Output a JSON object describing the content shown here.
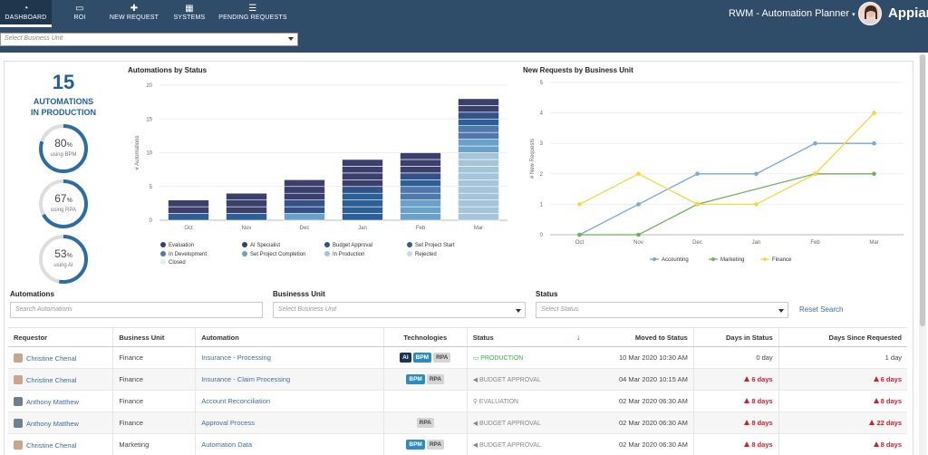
{
  "nav": {
    "tabs": [
      {
        "label": "DASHBOARD",
        "icon": "dashboard-icon",
        "active": true
      },
      {
        "label": "ROI",
        "icon": "roi-icon",
        "active": false
      },
      {
        "label": "NEW REQUEST",
        "icon": "plus-icon",
        "active": false
      },
      {
        "label": "SYSTEMS",
        "icon": "grid-icon",
        "active": false
      },
      {
        "label": "PENDING REQUESTS",
        "icon": "list-icon",
        "active": false
      }
    ],
    "app_title": "RWM - Automation Planner",
    "brand": "Appian"
  },
  "business_unit_select": {
    "placeholder": "Select Business Unit"
  },
  "kpi": {
    "count": "15",
    "label_line1": "AUTOMATIONS",
    "label_line2": "IN PRODUCTION",
    "gauges": [
      {
        "value": 80,
        "unit": "%",
        "label": "using BPM"
      },
      {
        "value": 67,
        "unit": "%",
        "label": "using RPA"
      },
      {
        "value": 53,
        "unit": "%",
        "label": "using AI"
      }
    ]
  },
  "colors": {
    "evaluation": "#3b3f6b",
    "ai_specialist": "#2b4466",
    "budget_approval": "#34528a",
    "set_project_start": "#2c5f95",
    "in_development": "#4f79aa",
    "set_project_completion": "#6aa1c9",
    "in_production": "#a4c4d9",
    "rejected": "#c8dbe8",
    "closed": "#e4edf4",
    "accounting": "#74a9d8",
    "marketing": "#6fb25a",
    "finance": "#f5d83e"
  },
  "chart_data": [
    {
      "type": "bar",
      "stacked": true,
      "title": "Automations by Status",
      "ylabel": "# Automations",
      "xlabel": "",
      "ylim": [
        0,
        20
      ],
      "yticks": [
        0,
        5,
        10,
        15,
        20
      ],
      "categories": [
        "Oct",
        "Nov",
        "Dec",
        "Jan",
        "Feb",
        "Mar"
      ],
      "series": [
        {
          "name": "In Production",
          "color_key": "in_production",
          "values": [
            0,
            0,
            0,
            0,
            0,
            10
          ]
        },
        {
          "name": "Set Project Completion",
          "color_key": "set_project_completion",
          "values": [
            0,
            0,
            1,
            0,
            3,
            2
          ]
        },
        {
          "name": "In Development",
          "color_key": "in_development",
          "values": [
            0,
            0,
            0,
            0,
            2,
            2
          ]
        },
        {
          "name": "Set Project Start",
          "color_key": "set_project_start",
          "values": [
            1,
            1,
            0,
            4,
            1,
            1
          ]
        },
        {
          "name": "Budget Approval",
          "color_key": "budget_approval",
          "values": [
            0,
            0,
            2,
            1,
            1,
            1
          ]
        },
        {
          "name": "AI Specialist",
          "color_key": "ai_specialist",
          "values": [
            0,
            0,
            0,
            0,
            0,
            0
          ]
        },
        {
          "name": "Evaluation",
          "color_key": "evaluation",
          "values": [
            2,
            3,
            3,
            4,
            3,
            2
          ]
        },
        {
          "name": "Rejected",
          "color_key": "rejected",
          "values": [
            0,
            0,
            0,
            0,
            0,
            0
          ]
        },
        {
          "name": "Closed",
          "color_key": "closed",
          "values": [
            0,
            0,
            0,
            0,
            0,
            0
          ]
        }
      ],
      "legend": {
        "placement": "bottom",
        "items": [
          {
            "name": "Evaluation",
            "color_key": "evaluation"
          },
          {
            "name": "AI Specialist",
            "color_key": "ai_specialist"
          },
          {
            "name": "Budget Approval",
            "color_key": "budget_approval"
          },
          {
            "name": "Set Project Start",
            "color_key": "set_project_start"
          },
          {
            "name": "In Development",
            "color_key": "in_development"
          },
          {
            "name": "Set Project Completion",
            "color_key": "set_project_completion"
          },
          {
            "name": "In Production",
            "color_key": "in_production"
          },
          {
            "name": "Rejected",
            "color_key": "rejected"
          },
          {
            "name": "Closed",
            "color_key": "closed"
          }
        ]
      }
    },
    {
      "type": "line",
      "title": "New Requests by Business Unit",
      "ylabel": "# New Requests",
      "xlabel": "",
      "ylim": [
        0,
        5
      ],
      "yticks": [
        0,
        1,
        2,
        3,
        4,
        5
      ],
      "categories": [
        "Oct",
        "Nov",
        "Dec",
        "Jan",
        "Feb",
        "Mar"
      ],
      "series": [
        {
          "name": "Accounting",
          "color_key": "accounting",
          "values": [
            0,
            1,
            2,
            2,
            3,
            3
          ]
        },
        {
          "name": "Marketing",
          "color_key": "marketing",
          "values": [
            0,
            0,
            1,
            null,
            2,
            2
          ]
        },
        {
          "name": "Finance",
          "color_key": "finance",
          "values": [
            1,
            2,
            1,
            1,
            2,
            4
          ]
        }
      ],
      "legend": {
        "placement": "bottom"
      }
    }
  ],
  "filters": {
    "automations": {
      "label": "Automations",
      "placeholder": "Search Automations"
    },
    "business_unit": {
      "label": "Businesss Unit",
      "placeholder": "Select Business Unit"
    },
    "status": {
      "label": "Status",
      "placeholder": "Select Status"
    },
    "reset": "Reset Search"
  },
  "table": {
    "headers": {
      "requestor": "Requestor",
      "business_unit": "Business Unit",
      "automation": "Automation",
      "technologies": "Technologies",
      "status": "Status",
      "moved": "Moved to Status",
      "days_in_status": "Days in Status",
      "days_since_requested": "Days Since Requested"
    },
    "rows": [
      {
        "requestor": "Christine Chenal",
        "gender": "f",
        "business_unit": "Finance",
        "automation": "Insurance - Processing",
        "technologies": [
          "AI",
          "BPM",
          "RPA"
        ],
        "status": "PRODUCTION",
        "status_icon": "monitor-icon",
        "moved": "10 Mar 2020 10:30 AM",
        "days_in_status": "0 day",
        "days_in_status_warn": false,
        "days_since": "1 day",
        "days_since_warn": false
      },
      {
        "requestor": "Christine Chenal",
        "gender": "f",
        "business_unit": "Finance",
        "automation": "Insurance - Claim Processing",
        "technologies": [
          "BPM",
          "RPA"
        ],
        "status": "BUDGET APPROVAL",
        "status_icon": "send-icon",
        "moved": "04 Mar 2020 10:15 AM",
        "days_in_status": "6 days",
        "days_in_status_warn": true,
        "days_since": "6 days",
        "days_since_warn": true
      },
      {
        "requestor": "Anthony Matthew",
        "gender": "m",
        "business_unit": "Finance",
        "automation": "Account Reconciliation",
        "technologies": [],
        "status": "EVALUATION",
        "status_icon": "search-icon",
        "moved": "02 Mar 2020 06:30 AM",
        "days_in_status": "8 days",
        "days_in_status_warn": true,
        "days_since": "8 days",
        "days_since_warn": true
      },
      {
        "requestor": "Anthony Matthew",
        "gender": "m",
        "business_unit": "Finance",
        "automation": "Approval Process",
        "technologies": [
          "RPA"
        ],
        "status": "BUDGET APPROVAL",
        "status_icon": "send-icon",
        "moved": "02 Mar 2020 06:30 AM",
        "days_in_status": "8 days",
        "days_in_status_warn": true,
        "days_since": "22 days",
        "days_since_warn": true
      },
      {
        "requestor": "Christine Chenal",
        "gender": "f",
        "business_unit": "Marketing",
        "automation": "Automation Data",
        "technologies": [
          "BPM",
          "RPA"
        ],
        "status": "BUDGET APPROVAL",
        "status_icon": "send-icon",
        "moved": "02 Mar 2020 06:30 AM",
        "days_in_status": "8 days",
        "days_in_status_warn": true,
        "days_since": "8 days",
        "days_since_warn": true
      }
    ]
  }
}
